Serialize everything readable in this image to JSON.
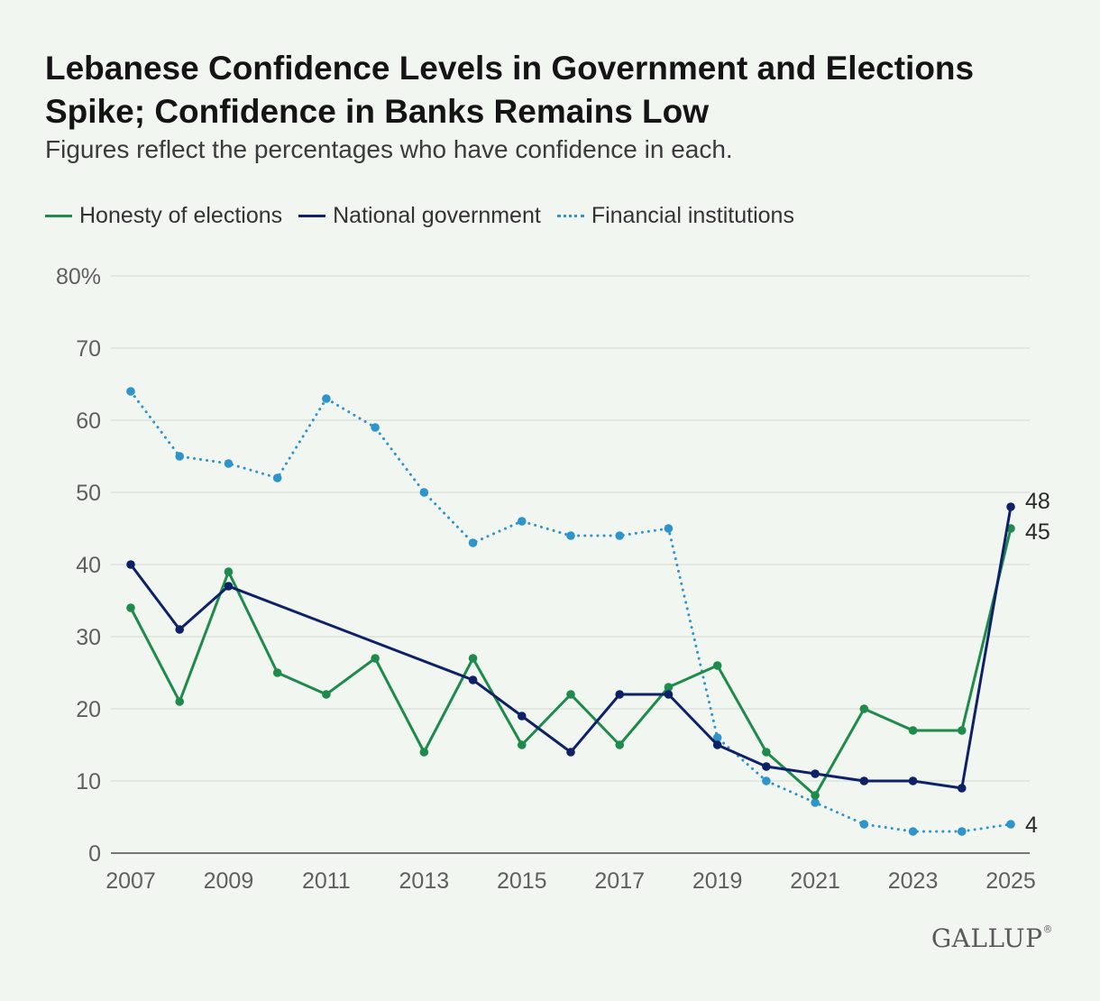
{
  "title": "Lebanese Confidence Levels in Government and Elections Spike; Confidence in Banks Remains Low",
  "subtitle": "Figures reflect the percentages who have confidence in each.",
  "brand": "GALLUP",
  "brand_mark": "®",
  "chart_data": {
    "type": "line",
    "title": "Lebanese Confidence Levels in Government and Elections Spike; Confidence in Banks Remains Low",
    "subtitle": "Figures reflect the percentages who have confidence in each.",
    "ylim": [
      0,
      80
    ],
    "yticks": [
      0,
      10,
      20,
      30,
      40,
      50,
      60,
      70,
      80
    ],
    "ytick_labels": [
      "0",
      "10",
      "20",
      "30",
      "40",
      "50",
      "60",
      "70",
      "80%"
    ],
    "xlim": [
      2007,
      2025
    ],
    "xticks": [
      2007,
      2009,
      2011,
      2013,
      2015,
      2017,
      2019,
      2021,
      2023,
      2025
    ],
    "grid": true,
    "legend_position": "top-left",
    "series": [
      {
        "name": "Honesty of elections",
        "color": "#1e8a4c",
        "style": "solid",
        "points": [
          [
            2007,
            34
          ],
          [
            2008,
            21
          ],
          [
            2009,
            39
          ],
          [
            2010,
            25
          ],
          [
            2011,
            22
          ],
          [
            2012,
            27
          ],
          [
            2013,
            14
          ],
          [
            2014,
            27
          ],
          [
            2015,
            15
          ],
          [
            2016,
            22
          ],
          [
            2017,
            15
          ],
          [
            2018,
            23
          ],
          [
            2019,
            26
          ],
          [
            2020,
            14
          ],
          [
            2021,
            8
          ],
          [
            2022,
            20
          ],
          [
            2023,
            17
          ],
          [
            2024,
            17
          ],
          [
            2025,
            45
          ]
        ],
        "end_label": "45"
      },
      {
        "name": "National government",
        "color": "#0f2166",
        "style": "solid",
        "points": [
          [
            2007,
            40
          ],
          [
            2008,
            31
          ],
          [
            2009,
            37
          ],
          [
            2014,
            24
          ],
          [
            2015,
            19
          ],
          [
            2016,
            14
          ],
          [
            2017,
            22
          ],
          [
            2018,
            22
          ],
          [
            2019,
            15
          ],
          [
            2020,
            12
          ],
          [
            2021,
            11
          ],
          [
            2022,
            10
          ],
          [
            2023,
            10
          ],
          [
            2024,
            9
          ],
          [
            2025,
            48
          ]
        ],
        "end_label": "48"
      },
      {
        "name": "Financial institutions",
        "color": "#2f94c9",
        "style": "dotted",
        "points": [
          [
            2007,
            64
          ],
          [
            2008,
            55
          ],
          [
            2009,
            54
          ],
          [
            2010,
            52
          ],
          [
            2011,
            63
          ],
          [
            2012,
            59
          ],
          [
            2013,
            50
          ],
          [
            2014,
            43
          ],
          [
            2015,
            46
          ],
          [
            2016,
            44
          ],
          [
            2017,
            44
          ],
          [
            2018,
            45
          ],
          [
            2019,
            16
          ],
          [
            2020,
            10
          ],
          [
            2021,
            7
          ],
          [
            2022,
            4
          ],
          [
            2023,
            3
          ],
          [
            2024,
            3
          ],
          [
            2025,
            4
          ]
        ],
        "end_label": "4"
      }
    ]
  }
}
